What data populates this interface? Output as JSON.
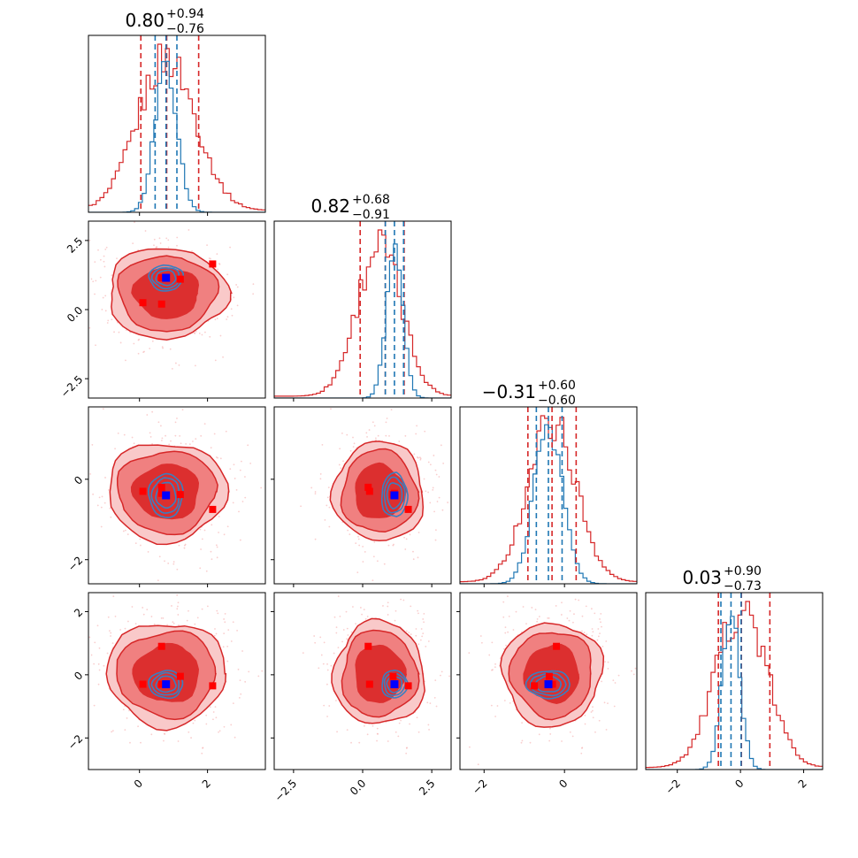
{
  "chart_data": {
    "type": "corner",
    "n_params": 4,
    "colors": {
      "broad": "#d62728",
      "narrow": "#1f77b4",
      "broad_fill": "#f08080",
      "truth_narrow": "#0000ff",
      "truth_broad": "#ff0000"
    },
    "titles": [
      {
        "median": "0.80",
        "plus": "+0.94",
        "minus": "−0.76"
      },
      {
        "median": "0.82",
        "plus": "+0.68",
        "minus": "−0.91"
      },
      {
        "median": "−0.31",
        "plus": "+0.60",
        "minus": "−0.60"
      },
      {
        "median": "0.03",
        "plus": "+0.90",
        "minus": "−0.73"
      }
    ],
    "ranges": [
      [
        -1.5,
        3.7
      ],
      [
        -3.2,
        3.2
      ],
      [
        -2.6,
        1.8
      ],
      [
        -3.0,
        2.6
      ]
    ],
    "ticks": [
      {
        "values": [
          0,
          2
        ],
        "labels": [
          "0",
          "2"
        ]
      },
      {
        "values": [
          -2.5,
          0,
          2.5
        ],
        "labels": [
          "−2.5",
          "0.0",
          "2.5"
        ]
      },
      {
        "values": [
          -2,
          0
        ],
        "labels": [
          "−2",
          "0"
        ]
      },
      {
        "values": [
          -2,
          0,
          2
        ],
        "labels": [
          "−2",
          "0",
          "2"
        ]
      }
    ],
    "broad_dist": {
      "means": [
        0.8,
        0.6,
        -0.31,
        0.03
      ],
      "sigmas": [
        0.85,
        0.8,
        0.6,
        0.8
      ]
    },
    "narrow_dist": {
      "means": [
        0.78,
        1.15,
        -0.4,
        -0.3
      ],
      "sigmas": [
        0.32,
        0.3,
        0.35,
        0.28
      ]
    },
    "quantile_lines": {
      "broad": [
        [
          0.04,
          0.8,
          1.74
        ],
        [
          -0.09,
          0.82,
          1.5
        ],
        [
          -0.91,
          -0.31,
          0.29
        ],
        [
          -0.7,
          0.03,
          0.93
        ]
      ],
      "narrow": [
        [
          0.46,
          0.78,
          1.1
        ],
        [
          0.82,
          1.15,
          1.48
        ],
        [
          -0.7,
          -0.4,
          -0.06
        ],
        [
          -0.62,
          -0.3,
          0.02
        ]
      ]
    },
    "broad_markers": [
      [
        0.1,
        0.25,
        -0.3,
        -0.3
      ],
      [
        0.65,
        0.2,
        -0.2,
        0.9
      ],
      [
        1.2,
        1.1,
        -0.38,
        -0.05
      ],
      [
        2.15,
        1.65,
        -0.75,
        -0.35
      ],
      [
        0.65,
        1.15,
        -0.35,
        -0.3
      ]
    ],
    "truth_point": [
      0.78,
      1.15,
      -0.4,
      -0.3
    ]
  }
}
